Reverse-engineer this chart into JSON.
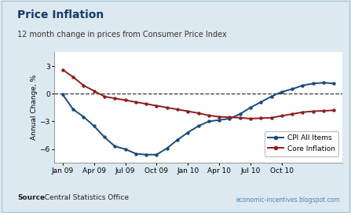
{
  "title": "Price Inflation",
  "subtitle": "12 month change in prices from Consumer Price Index",
  "ylabel": "Annual Change, %",
  "source_bold": "Source",
  "source_rest": ": Central Statistics Office",
  "watermark": "economic-incentives.blogspot.com",
  "background_color": "#dce9f0",
  "plot_background": "#ffffff",
  "ylim": [
    -7.5,
    4.5
  ],
  "yticks": [
    -6,
    -3,
    0,
    3
  ],
  "x_tick_positions": [
    0,
    3,
    6,
    9,
    12,
    15,
    18,
    21
  ],
  "x_labels": [
    "Jan 09",
    "Apr 09",
    "Jul 09",
    "Oct 09",
    "Jan 10",
    "Apr 10",
    "Jul 10",
    "Oct 10"
  ],
  "cpi_color": "#1a4a7a",
  "core_color": "#8b2020",
  "title_color": "#1a3a6a",
  "cpi_data": [
    -0.1,
    -1.7,
    -2.5,
    -3.5,
    -4.7,
    -5.7,
    -6.0,
    -6.5,
    -6.6,
    -6.6,
    -5.9,
    -5.0,
    -4.2,
    -3.5,
    -3.0,
    -2.85,
    -2.7,
    -2.2,
    -1.5,
    -0.9,
    -0.3,
    0.2,
    0.5,
    0.9,
    1.1,
    1.2,
    1.1
  ],
  "core_data": [
    2.6,
    1.8,
    0.9,
    0.3,
    -0.3,
    -0.5,
    -0.7,
    -0.9,
    -1.1,
    -1.3,
    -1.5,
    -1.7,
    -1.9,
    -2.1,
    -2.35,
    -2.5,
    -2.55,
    -2.6,
    -2.7,
    -2.65,
    -2.6,
    -2.4,
    -2.2,
    -2.0,
    -1.9,
    -1.85,
    -1.8
  ]
}
